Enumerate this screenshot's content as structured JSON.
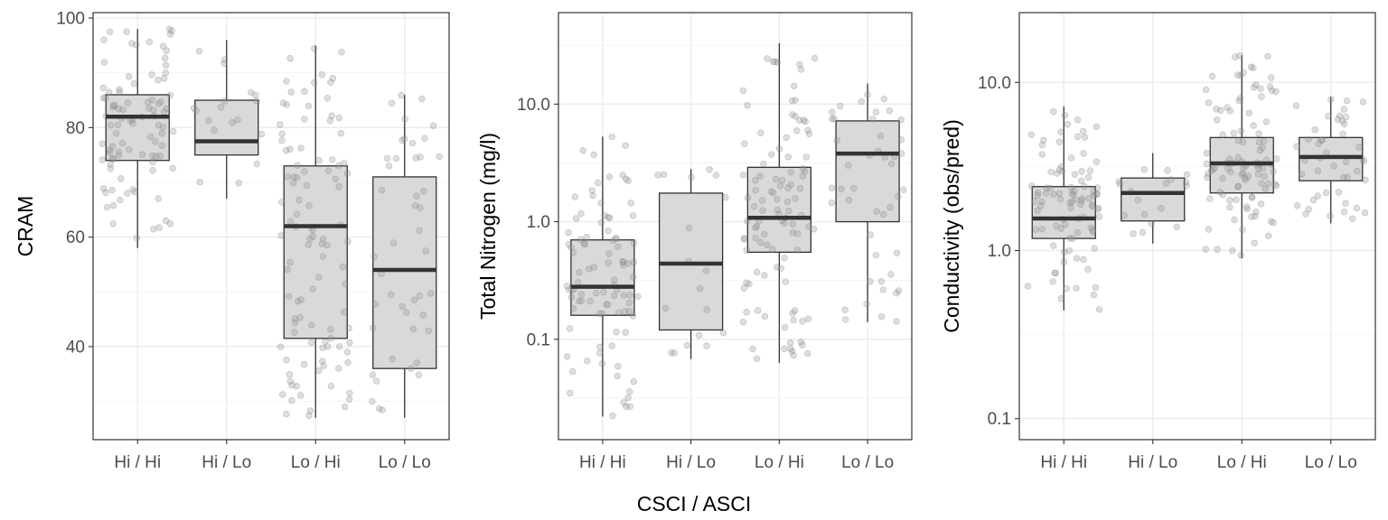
{
  "chart_data": [
    {
      "type": "box",
      "ylabel": "CRAM",
      "xlabel": "",
      "yscale": "linear",
      "categories": [
        "Hi / Hi",
        "Hi / Lo",
        "Lo / Hi",
        "Lo / Lo"
      ],
      "ylim": [
        23,
        101
      ],
      "yticks": [
        40,
        60,
        80,
        100
      ],
      "ytick_labels": [
        "40",
        "60",
        "80",
        "100"
      ],
      "grid": true,
      "boxes": [
        {
          "lower_whisker": 58,
          "q1": 74,
          "median": 82,
          "q3": 86,
          "upper_whisker": 98
        },
        {
          "lower_whisker": 67,
          "q1": 75,
          "median": 77.5,
          "q3": 85,
          "upper_whisker": 96
        },
        {
          "lower_whisker": 27,
          "q1": 41.5,
          "median": 62,
          "q3": 73,
          "upper_whisker": 95
        },
        {
          "lower_whisker": 27,
          "q1": 36,
          "median": 54,
          "q3": 71,
          "upper_whisker": 86
        }
      ]
    },
    {
      "type": "box",
      "ylabel": "Total Nitrogen (mg/l)",
      "xlabel": "CSCI / ASCI",
      "yscale": "log",
      "categories": [
        "Hi / Hi",
        "Hi / Lo",
        "Lo / Hi",
        "Lo / Lo"
      ],
      "ylim": [
        0.014,
        60
      ],
      "yticks": [
        0.1,
        1.0,
        10.0
      ],
      "ytick_labels": [
        "0.1",
        "1.0",
        "10.0"
      ],
      "grid": true,
      "boxes": [
        {
          "lower_whisker": 0.022,
          "q1": 0.16,
          "median": 0.28,
          "q3": 0.7,
          "upper_whisker": 5.3
        },
        {
          "lower_whisker": 0.068,
          "q1": 0.12,
          "median": 0.44,
          "q3": 1.75,
          "upper_whisker": 2.8
        },
        {
          "lower_whisker": 0.063,
          "q1": 0.55,
          "median": 1.08,
          "q3": 2.9,
          "upper_whisker": 33
        },
        {
          "lower_whisker": 0.14,
          "q1": 1.0,
          "median": 3.8,
          "q3": 7.2,
          "upper_whisker": 15
        }
      ]
    },
    {
      "type": "box",
      "ylabel": "Conductivity (obs/pred)",
      "xlabel": "",
      "yscale": "log",
      "categories": [
        "Hi / Hi",
        "Hi / Lo",
        "Lo / Hi",
        "Lo / Lo"
      ],
      "ylim": [
        0.075,
        26
      ],
      "yticks": [
        0.1,
        1.0,
        10.0
      ],
      "ytick_labels": [
        "0.1",
        "1.0",
        "10.0"
      ],
      "grid": true,
      "boxes": [
        {
          "lower_whisker": 0.44,
          "q1": 1.18,
          "median": 1.55,
          "q3": 2.4,
          "upper_whisker": 7.2
        },
        {
          "lower_whisker": 1.1,
          "q1": 1.5,
          "median": 2.2,
          "q3": 2.7,
          "upper_whisker": 3.8
        },
        {
          "lower_whisker": 0.9,
          "q1": 2.2,
          "median": 3.3,
          "q3": 4.7,
          "upper_whisker": 14.5
        },
        {
          "lower_whisker": 1.45,
          "q1": 2.6,
          "median": 3.6,
          "q3": 4.7,
          "upper_whisker": 8.2
        }
      ]
    }
  ],
  "colors": {
    "box_fill": "#d9d9d9",
    "box_line": "#333333",
    "point": "#999999",
    "grid": "#ebebeb",
    "tick_text": "#4d4d4d"
  }
}
